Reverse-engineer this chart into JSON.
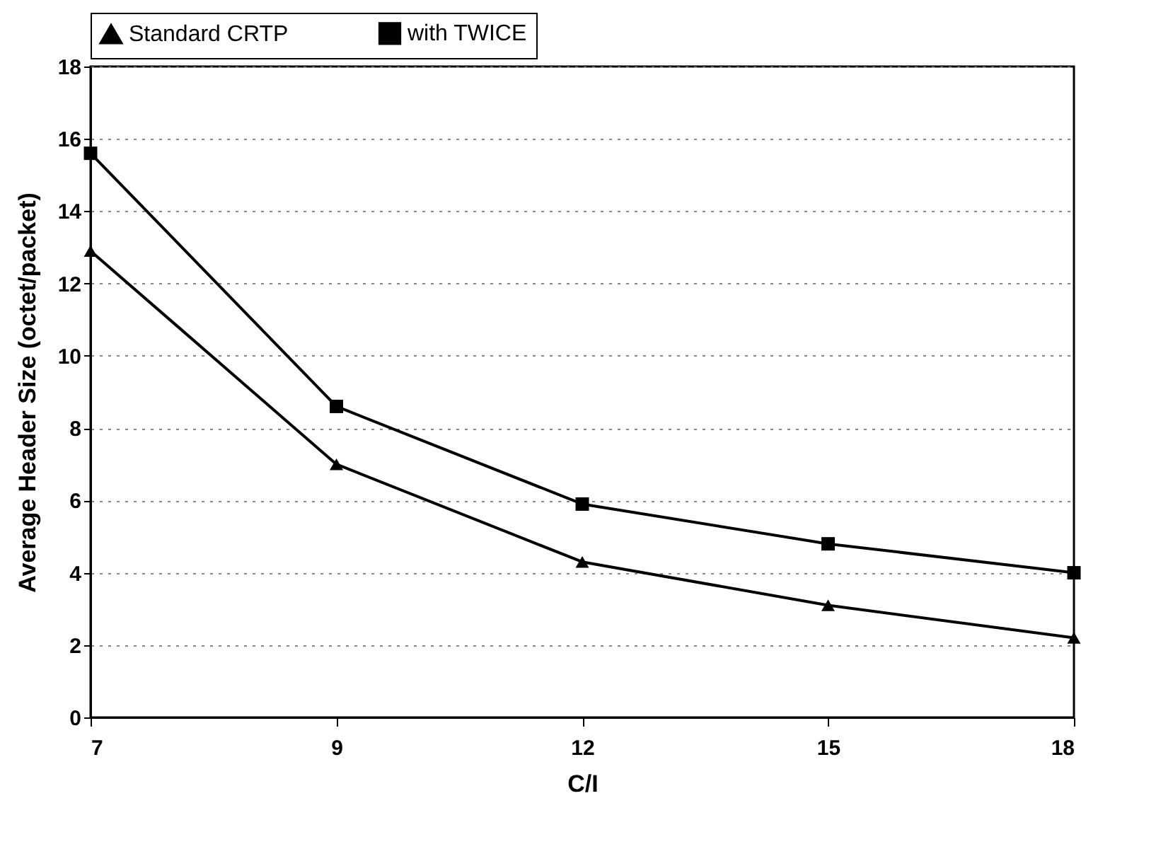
{
  "chart_data": {
    "type": "line",
    "xlabel": "C/I",
    "ylabel": "Average Header Size (octet/packet)",
    "categories": [
      "7",
      "9",
      "12",
      "15",
      "18"
    ],
    "series": [
      {
        "name": "Standard CRTP",
        "color": "#000000",
        "marker": "triangle",
        "values": [
          12.9,
          7.0,
          4.3,
          3.1,
          2.2
        ]
      },
      {
        "name": "with TWICE",
        "color": "#000000",
        "marker": "square",
        "values": [
          15.6,
          8.6,
          5.9,
          4.8,
          4.0
        ]
      }
    ],
    "ylim": [
      0,
      18
    ],
    "yticks": [
      0,
      2,
      4,
      6,
      8,
      10,
      12,
      14,
      16,
      18
    ],
    "grid": "y",
    "legend": "top",
    "line_style": "solid"
  }
}
